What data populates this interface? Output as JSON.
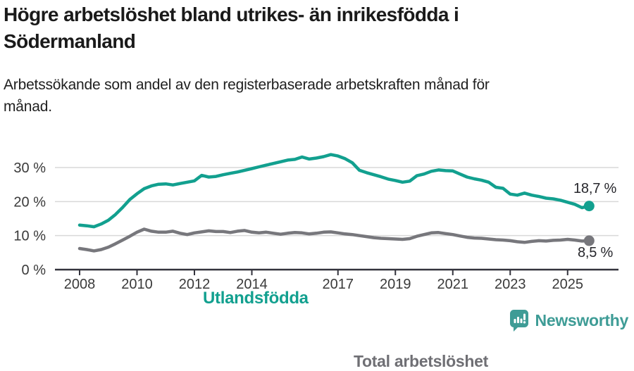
{
  "header": {
    "title": "Högre arbetslöshet bland utrikes- än inrikesfödda i\nSödermanland",
    "subtitle": "Arbetssökande som andel av den registerbaserade arbetskraften månad för\nmånad."
  },
  "chart_data": {
    "type": "line",
    "title": "Högre arbetslöshet bland utrikes- än inrikesfödda i Södermanland",
    "subtitle": "Arbetssökande som andel av den registerbaserade arbetskraften månad för månad.",
    "x_unit": "year",
    "x_start": 2008,
    "x_step": 0.25,
    "x_ticks": [
      2008,
      2010,
      2012,
      2014,
      2017,
      2019,
      2021,
      2023,
      2025
    ],
    "y_ticks": [
      0,
      10,
      20,
      30
    ],
    "y_tick_labels": [
      "0 %",
      "10 %",
      "20 %",
      "30 %"
    ],
    "ylim": [
      0,
      35
    ],
    "grid": "horizontal",
    "legend_position": "inline-labels",
    "series": [
      {
        "name": "Utlandsfödda",
        "color": "#12a08f",
        "end_label": "18,7 %",
        "end_value": 18.7,
        "values": [
          13.1,
          12.9,
          12.6,
          13.4,
          14.5,
          16.2,
          18.3,
          20.6,
          22.3,
          23.8,
          24.6,
          25.1,
          25.2,
          24.9,
          25.3,
          25.7,
          26.1,
          27.7,
          27.2,
          27.4,
          27.9,
          28.3,
          28.7,
          29.2,
          29.7,
          30.2,
          30.7,
          31.2,
          31.7,
          32.2,
          32.4,
          33.1,
          32.5,
          32.8,
          33.2,
          33.8,
          33.4,
          32.6,
          31.4,
          29.2,
          28.5,
          27.9,
          27.3,
          26.6,
          26.2,
          25.7,
          26.0,
          27.6,
          28.1,
          28.9,
          29.3,
          29.1,
          29.0,
          28.1,
          27.2,
          26.7,
          26.3,
          25.7,
          24.2,
          23.9,
          22.2,
          21.9,
          22.5,
          21.9,
          21.5,
          21.0,
          20.8,
          20.4,
          19.8,
          19.2,
          18.2,
          18.7
        ]
      },
      {
        "name": "Total arbetslöshet",
        "color": "#77777c",
        "end_label": "8,5 %",
        "end_value": 8.5,
        "values": [
          6.2,
          5.9,
          5.5,
          5.9,
          6.6,
          7.6,
          8.7,
          9.8,
          11.0,
          11.9,
          11.3,
          11.0,
          11.0,
          11.3,
          10.7,
          10.3,
          10.8,
          11.1,
          11.4,
          11.2,
          11.2,
          10.9,
          11.3,
          11.5,
          11.0,
          10.8,
          11.0,
          10.7,
          10.4,
          10.7,
          10.9,
          10.8,
          10.5,
          10.7,
          11.0,
          11.1,
          10.8,
          10.5,
          10.3,
          10.0,
          9.7,
          9.4,
          9.2,
          9.1,
          9.0,
          8.9,
          9.1,
          9.8,
          10.3,
          10.8,
          10.9,
          10.6,
          10.3,
          9.9,
          9.5,
          9.3,
          9.2,
          9.0,
          8.8,
          8.7,
          8.5,
          8.2,
          8.0,
          8.3,
          8.5,
          8.4,
          8.6,
          8.7,
          8.9,
          8.7,
          8.4,
          8.5
        ]
      }
    ]
  },
  "colors": {
    "grid": "#d9d9d9",
    "axis": "#33333c",
    "tick_label": "#3a3a3a",
    "value_label": "#26262b",
    "title": "#1a1a1a"
  },
  "footer": {
    "brand": "Newsworthy",
    "brand_color": "#3e9c96"
  }
}
